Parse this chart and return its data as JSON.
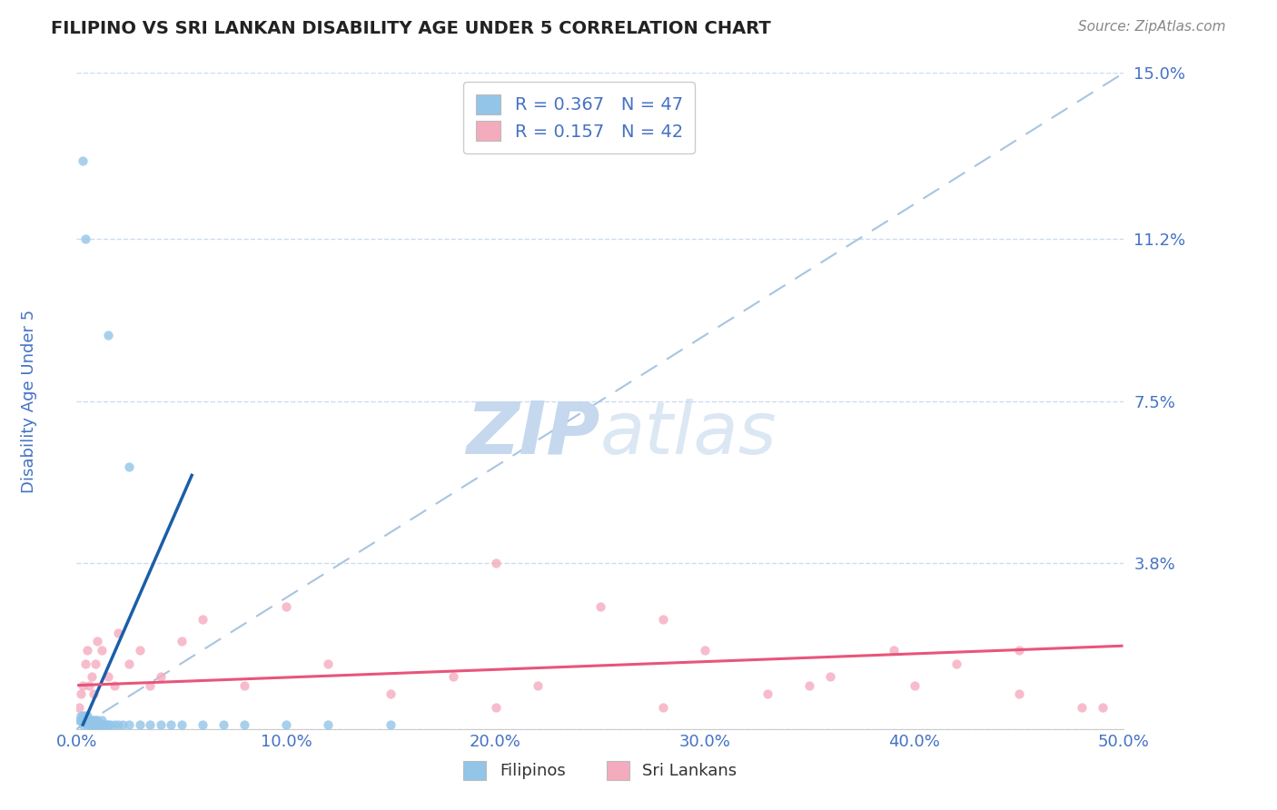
{
  "title": "FILIPINO VS SRI LANKAN DISABILITY AGE UNDER 5 CORRELATION CHART",
  "source": "Source: ZipAtlas.com",
  "ylabel": "Disability Age Under 5",
  "xlim": [
    0.0,
    0.5
  ],
  "ylim": [
    0.0,
    0.15
  ],
  "yticks": [
    0.0,
    0.038,
    0.075,
    0.112,
    0.15
  ],
  "ytick_labels": [
    "",
    "3.8%",
    "7.5%",
    "11.2%",
    "15.0%"
  ],
  "xticks": [
    0.0,
    0.1,
    0.2,
    0.3,
    0.4,
    0.5
  ],
  "xtick_labels": [
    "0.0%",
    "10.0%",
    "20.0%",
    "30.0%",
    "40.0%",
    "50.0%"
  ],
  "filipino_color": "#92C5E8",
  "srilankan_color": "#F5ABBE",
  "filipino_line_color": "#1A5EA8",
  "srilankan_line_color": "#E8557A",
  "ref_line_color": "#A8C4E0",
  "R_filipino": 0.367,
  "N_filipino": 47,
  "R_srilankan": 0.157,
  "N_srilankan": 42,
  "legend_R_fil": "R = 0.367",
  "legend_N_fil": "N = 47",
  "legend_R_sri": "R = 0.157",
  "legend_N_sri": "N = 42",
  "watermark_zip": "ZIP",
  "watermark_atlas": "atlas",
  "watermark_color": "#C5D8EE",
  "background_color": "#FFFFFF",
  "grid_color": "#C8D8EE",
  "title_color": "#222222",
  "tick_label_color": "#4472C4",
  "source_color": "#888888",
  "fil_scatter_x": [
    0.001,
    0.002,
    0.002,
    0.003,
    0.003,
    0.003,
    0.004,
    0.004,
    0.005,
    0.005,
    0.005,
    0.006,
    0.006,
    0.007,
    0.007,
    0.008,
    0.008,
    0.009,
    0.009,
    0.01,
    0.01,
    0.011,
    0.012,
    0.012,
    0.013,
    0.014,
    0.015,
    0.016,
    0.018,
    0.02,
    0.022,
    0.025,
    0.03,
    0.035,
    0.04,
    0.045,
    0.05,
    0.06,
    0.07,
    0.08,
    0.1,
    0.12,
    0.15,
    0.003,
    0.004,
    0.015,
    0.025
  ],
  "fil_scatter_y": [
    0.002,
    0.003,
    0.002,
    0.003,
    0.002,
    0.001,
    0.002,
    0.003,
    0.002,
    0.003,
    0.001,
    0.002,
    0.001,
    0.002,
    0.001,
    0.002,
    0.001,
    0.002,
    0.001,
    0.002,
    0.001,
    0.001,
    0.001,
    0.002,
    0.001,
    0.001,
    0.001,
    0.001,
    0.001,
    0.001,
    0.001,
    0.001,
    0.001,
    0.001,
    0.001,
    0.001,
    0.001,
    0.001,
    0.001,
    0.001,
    0.001,
    0.001,
    0.001,
    0.13,
    0.112,
    0.09,
    0.06
  ],
  "sri_scatter_x": [
    0.001,
    0.002,
    0.003,
    0.004,
    0.005,
    0.006,
    0.007,
    0.008,
    0.009,
    0.01,
    0.012,
    0.015,
    0.018,
    0.02,
    0.025,
    0.03,
    0.035,
    0.04,
    0.05,
    0.06,
    0.08,
    0.1,
    0.12,
    0.15,
    0.18,
    0.2,
    0.22,
    0.25,
    0.28,
    0.3,
    0.33,
    0.36,
    0.39,
    0.42,
    0.45,
    0.48,
    0.2,
    0.28,
    0.35,
    0.4,
    0.45,
    0.49
  ],
  "sri_scatter_y": [
    0.005,
    0.008,
    0.01,
    0.015,
    0.018,
    0.01,
    0.012,
    0.008,
    0.015,
    0.02,
    0.018,
    0.012,
    0.01,
    0.022,
    0.015,
    0.018,
    0.01,
    0.012,
    0.02,
    0.025,
    0.01,
    0.028,
    0.015,
    0.008,
    0.012,
    0.005,
    0.01,
    0.028,
    0.005,
    0.018,
    0.008,
    0.012,
    0.018,
    0.015,
    0.008,
    0.005,
    0.038,
    0.025,
    0.01,
    0.01,
    0.018,
    0.005
  ],
  "fil_line_x0": 0.003,
  "fil_line_x1": 0.055,
  "fil_line_y0": 0.001,
  "fil_line_y1": 0.058,
  "sri_line_x0": 0.001,
  "sri_line_x1": 0.499,
  "sri_line_y0": 0.01,
  "sri_line_y1": 0.019
}
